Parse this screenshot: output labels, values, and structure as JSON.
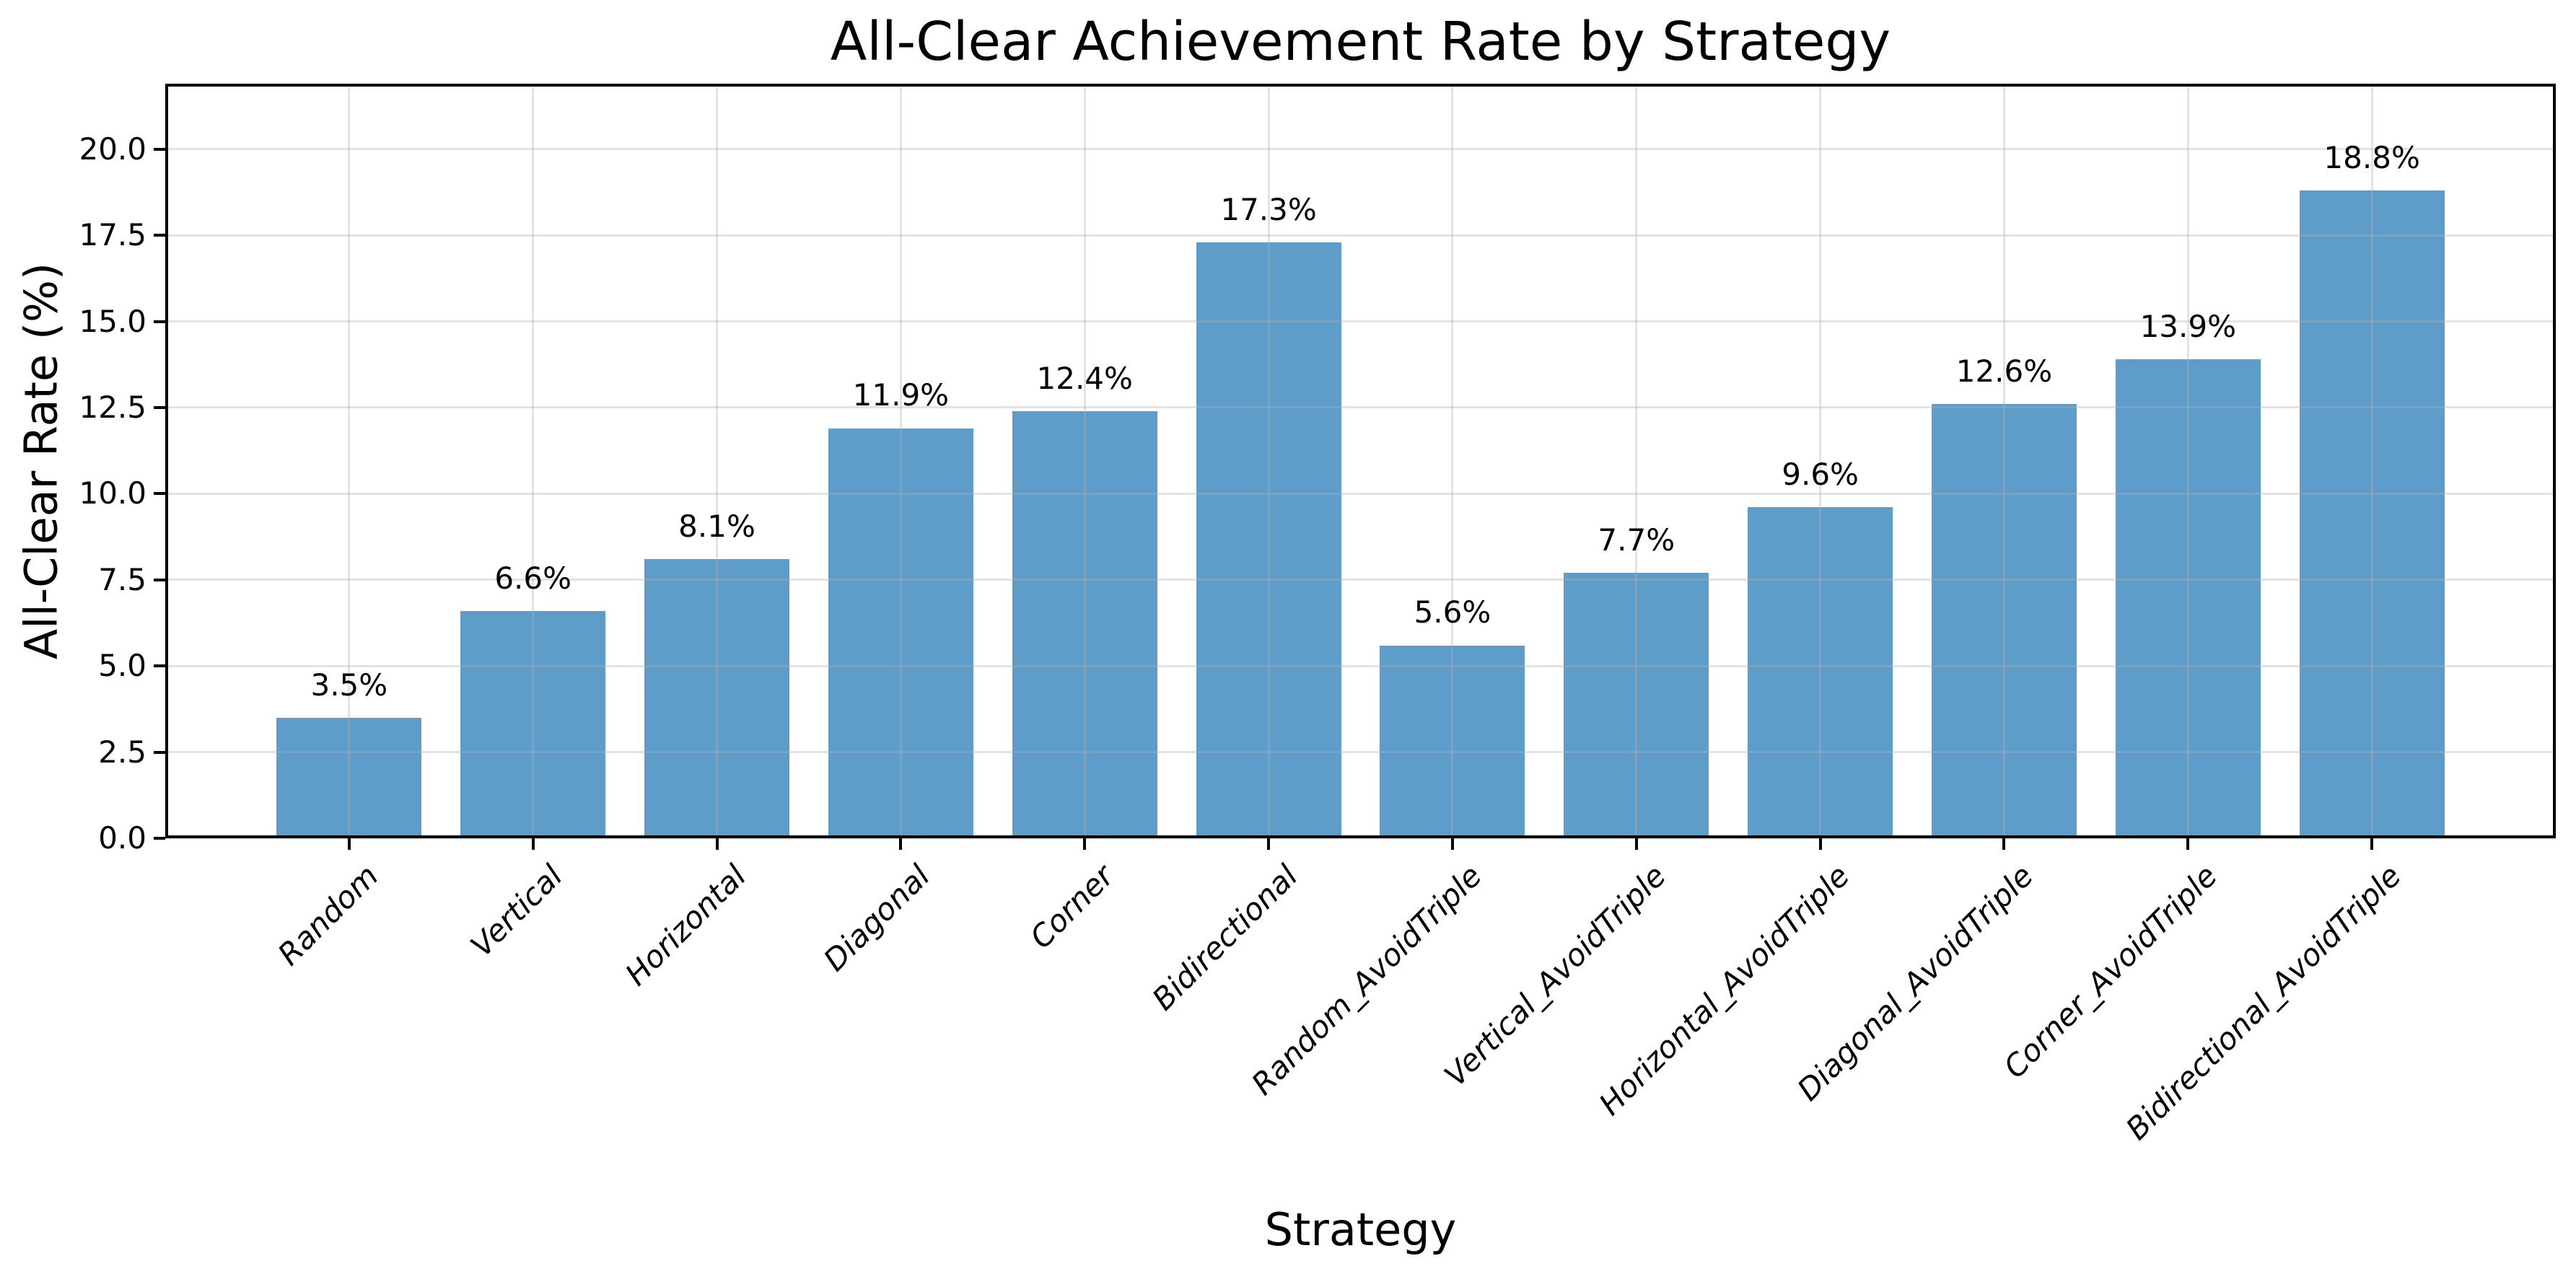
{
  "chart_data": {
    "type": "bar",
    "title": "All-Clear Achievement Rate by Strategy",
    "xlabel": "Strategy",
    "ylabel": "All-Clear Rate (%)",
    "categories": [
      "Random",
      "Vertical",
      "Horizontal",
      "Diagonal",
      "Corner",
      "Bidirectional",
      "Random_AvoidTriple",
      "Vertical_AvoidTriple",
      "Horizontal_AvoidTriple",
      "Diagonal_AvoidTriple",
      "Corner_AvoidTriple",
      "Bidirectional_AvoidTriple"
    ],
    "values": [
      3.5,
      6.6,
      8.1,
      11.9,
      12.4,
      17.3,
      5.6,
      7.7,
      9.6,
      12.6,
      13.9,
      18.8
    ],
    "value_labels": [
      "3.5%",
      "6.6%",
      "8.1%",
      "11.9%",
      "12.4%",
      "17.3%",
      "5.6%",
      "7.7%",
      "9.6%",
      "12.6%",
      "13.9%",
      "18.8%"
    ],
    "yticks": [
      0.0,
      2.5,
      5.0,
      7.5,
      10.0,
      12.5,
      15.0,
      17.5,
      20.0
    ],
    "ytick_labels": [
      "0.0",
      "2.5",
      "5.0",
      "7.5",
      "10.0",
      "12.5",
      "15.0",
      "17.5",
      "20.0"
    ],
    "ylim": [
      0,
      21.9
    ],
    "grid": true,
    "legend": null,
    "bar_color": "#5e9dc9",
    "grid_color": "rgba(176,176,176,0.35)",
    "spine_color": "#000000",
    "text_color": "#000000",
    "background_color": "#ffffff"
  }
}
